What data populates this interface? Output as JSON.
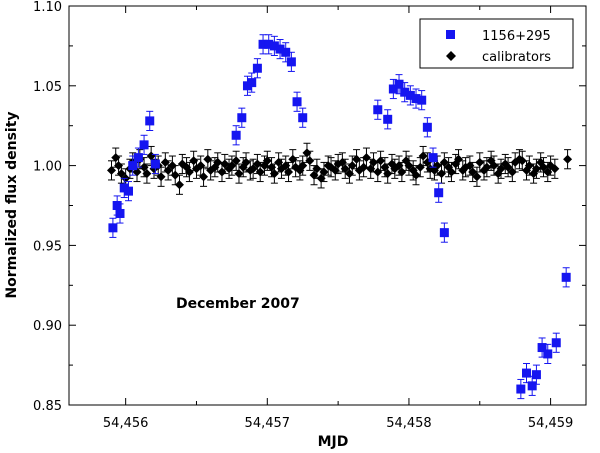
{
  "chart_data": {
    "type": "scatter",
    "xlabel": "MJD",
    "ylabel": "Normalized flux density",
    "xlim": [
      54455.6,
      54459.25
    ],
    "ylim": [
      0.85,
      1.1
    ],
    "x_ticks": [
      54456,
      54457,
      54458,
      54459
    ],
    "x_tick_labels": [
      "54,456",
      "54,457",
      "54,458",
      "54,459"
    ],
    "y_ticks": [
      0.85,
      0.9,
      0.95,
      1.0,
      1.05,
      1.1
    ],
    "y_tick_labels": [
      "0.85",
      "0.90",
      "0.95",
      "1.00",
      "1.05",
      "1.10"
    ],
    "annotation": "December 2007",
    "legend_position": "top-right",
    "series": [
      {
        "name": "1156+295",
        "marker": "square",
        "color": "#1515f0",
        "x": [
          54455.91,
          54455.94,
          54455.96,
          54455.99,
          54456.02,
          54456.05,
          54456.09,
          54456.13,
          54456.17,
          54456.21,
          54456.78,
          54456.82,
          54456.86,
          54456.89,
          54456.93,
          54456.97,
          54457.01,
          54457.05,
          54457.09,
          54457.13,
          54457.17,
          54457.21,
          54457.25,
          54457.78,
          54457.85,
          54457.89,
          54457.93,
          54457.97,
          54458.01,
          54458.05,
          54458.09,
          54458.13,
          54458.17,
          54458.21,
          54458.25,
          54458.79,
          54458.83,
          54458.87,
          54458.9,
          54458.94,
          54458.98,
          54459.04,
          54459.11
        ],
        "y": [
          0.961,
          0.975,
          0.97,
          0.986,
          0.984,
          1.0,
          1.005,
          1.013,
          1.028,
          1.001,
          1.019,
          1.03,
          1.05,
          1.052,
          1.061,
          1.076,
          1.076,
          1.075,
          1.073,
          1.071,
          1.065,
          1.04,
          1.03,
          1.035,
          1.029,
          1.048,
          1.051,
          1.046,
          1.044,
          1.042,
          1.041,
          1.024,
          1.005,
          0.983,
          0.958,
          0.86,
          0.87,
          0.862,
          0.869,
          0.886,
          0.882,
          0.889,
          0.93
        ],
        "yerr": 0.006
      },
      {
        "name": "calibrators",
        "marker": "diamond",
        "color": "#000000",
        "x": [
          54455.9,
          54455.93,
          54455.95,
          54455.97,
          54456.0,
          54456.03,
          54456.05,
          54456.08,
          54456.1,
          54456.13,
          54456.15,
          54456.18,
          54456.2,
          54456.23,
          54456.25,
          54456.28,
          54456.3,
          54456.33,
          54456.35,
          54456.38,
          54456.4,
          54456.43,
          54456.45,
          54456.48,
          54456.5,
          54456.53,
          54456.55,
          54456.58,
          54456.6,
          54456.63,
          54456.65,
          54456.68,
          54456.7,
          54456.73,
          54456.75,
          54456.78,
          54456.8,
          54456.83,
          54456.85,
          54456.88,
          54456.9,
          54456.93,
          54456.95,
          54456.98,
          54457.0,
          54457.03,
          54457.05,
          54457.08,
          54457.1,
          54457.13,
          54457.15,
          54457.18,
          54457.2,
          54457.23,
          54457.25,
          54457.28,
          54457.3,
          54457.33,
          54457.35,
          54457.38,
          54457.4,
          54457.43,
          54457.45,
          54457.48,
          54457.5,
          54457.53,
          54457.55,
          54457.58,
          54457.6,
          54457.63,
          54457.65,
          54457.68,
          54457.7,
          54457.73,
          54457.75,
          54457.78,
          54457.8,
          54457.83,
          54457.85,
          54457.88,
          54457.9,
          54457.93,
          54457.95,
          54457.98,
          54458.0,
          54458.03,
          54458.05,
          54458.08,
          54458.1,
          54458.13,
          54458.15,
          54458.18,
          54458.2,
          54458.23,
          54458.25,
          54458.28,
          54458.3,
          54458.33,
          54458.35,
          54458.38,
          54458.4,
          54458.43,
          54458.45,
          54458.48,
          54458.5,
          54458.53,
          54458.55,
          54458.58,
          54458.6,
          54458.63,
          54458.65,
          54458.68,
          54458.7,
          54458.73,
          54458.75,
          54458.78,
          54458.8,
          54458.83,
          54458.85,
          54458.88,
          54458.9,
          54458.93,
          54458.95,
          54458.98,
          54459.0,
          54459.03,
          54459.12
        ],
        "y": [
          0.997,
          1.005,
          1.0,
          0.995,
          0.992,
          0.998,
          1.002,
          0.996,
          1.004,
          0.999,
          0.995,
          1.006,
          0.998,
          1.0,
          0.993,
          1.002,
          0.997,
          1.0,
          0.994,
          0.988,
          1.001,
          0.999,
          0.996,
          1.003,
          0.998,
          1.0,
          0.993,
          1.004,
          0.997,
          0.999,
          1.002,
          0.996,
          1.001,
          0.998,
          1.0,
          1.003,
          0.995,
          0.999,
          1.002,
          0.997,
          0.998,
          1.001,
          0.996,
          1.0,
          1.003,
          0.999,
          0.995,
          1.002,
          0.998,
          1.0,
          0.996,
          1.004,
          0.999,
          0.997,
          1.0,
          1.008,
          1.003,
          0.994,
          0.998,
          0.992,
          0.996,
          1.0,
          0.999,
          0.997,
          1.001,
          1.002,
          0.998,
          0.995,
          1.0,
          1.004,
          0.997,
          0.999,
          1.005,
          0.998,
          1.002,
          0.996,
          1.003,
          0.999,
          0.995,
          1.001,
          0.998,
          1.0,
          0.996,
          1.003,
          1.0,
          0.997,
          0.994,
          0.999,
          1.006,
          1.002,
          0.998,
          0.997,
          1.0,
          0.995,
          1.002,
          0.999,
          0.996,
          1.001,
          1.004,
          0.997,
          0.999,
          1.0,
          0.996,
          0.993,
          1.002,
          0.997,
          0.999,
          1.003,
          1.0,
          0.995,
          0.998,
          1.001,
          0.999,
          0.996,
          1.002,
          1.004,
          1.003,
          0.997,
          1.0,
          0.995,
          0.998,
          1.002,
          0.999,
          0.996,
          1.0,
          0.998,
          1.004
        ],
        "yerr": 0.006
      }
    ]
  }
}
